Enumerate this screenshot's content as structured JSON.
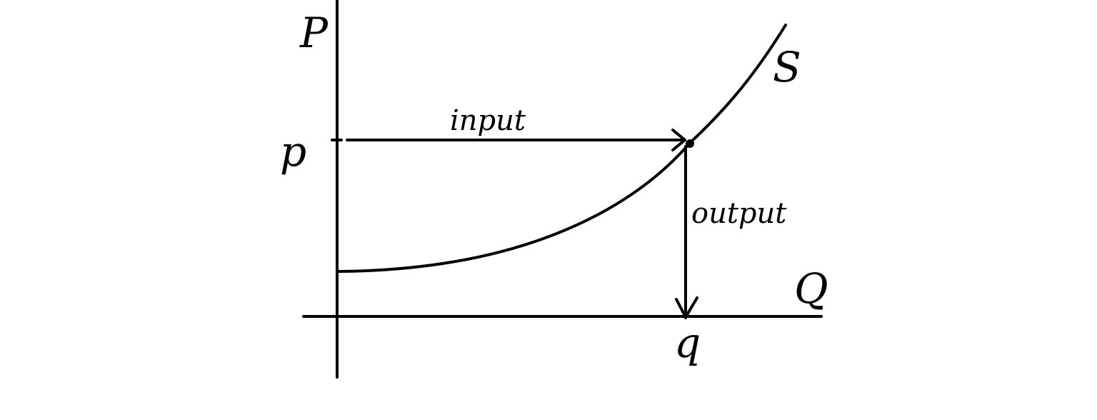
{
  "labels": {
    "y_axis": "P",
    "x_axis": "Q",
    "curve": "S",
    "price": "p",
    "quantity": "q",
    "input": "input",
    "output": "output"
  },
  "colors": {
    "ink": "#000000",
    "background": "#ffffff"
  }
}
